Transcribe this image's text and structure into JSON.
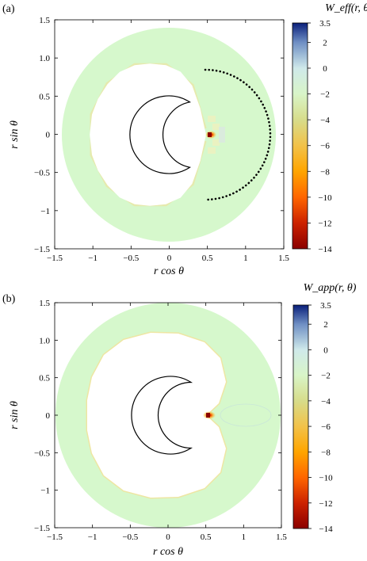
{
  "chart_data": [
    {
      "type": "heatmap",
      "panel_label": "(a)",
      "xlabel": "r cos θ",
      "ylabel": "r sin θ",
      "xlim": [
        -1.5,
        1.5
      ],
      "ylim": [
        -1.5,
        1.5
      ],
      "xticks": [
        -1.5,
        -1,
        -0.5,
        0,
        0.5,
        1,
        1.5
      ],
      "xtick_labels": [
        "−1.5",
        "−1",
        "−0.5",
        "0",
        "0.5",
        "1",
        "1.5"
      ],
      "yticks": [
        -1.5,
        -1,
        -0.5,
        0,
        0.5,
        1,
        1.5
      ],
      "ytick_labels": [
        "−1.5",
        "−1",
        "−0.5",
        "0",
        "0.5",
        "1.0",
        "1.5"
      ],
      "colorbar": {
        "title": "W_eff(r, θ)",
        "range": [
          -14,
          3.5
        ],
        "ticks": [
          3.5,
          2,
          0,
          -2,
          -4,
          -6,
          -8,
          -10,
          -12,
          -14
        ],
        "tick_labels": [
          "3.5",
          "2",
          "0",
          "−2",
          "−4",
          "−6",
          "−8",
          "−10",
          "−12",
          "−14"
        ]
      },
      "outer_radius": 1.4,
      "background_value": 0.3,
      "dotted_arc": {
        "center": [
          0.21,
          0
        ],
        "radius": 0.34,
        "theta_deg": [
          -72,
          72
        ]
      },
      "hotspot": {
        "r": 0.52,
        "value": -14
      }
    },
    {
      "type": "heatmap",
      "panel_label": "(b)",
      "xlabel": "r cos θ",
      "ylabel": "r sin θ",
      "xlim": [
        -1.5,
        1.5
      ],
      "ylim": [
        -1.5,
        1.5
      ],
      "xticks": [
        -1.5,
        -1,
        -0.5,
        0,
        0.5,
        1,
        1.5
      ],
      "xtick_labels": [
        "−1.5",
        "−1",
        "−0.5",
        "0",
        "0.5",
        "1",
        "1.5"
      ],
      "yticks": [
        -1.5,
        -1,
        -0.5,
        0,
        0.5,
        1,
        1.5
      ],
      "ytick_labels": [
        "−1.5",
        "−1",
        "−0.5",
        "0",
        "0.5",
        "1.0",
        "1.5"
      ],
      "colorbar": {
        "title": "W_app(r, θ)",
        "range": [
          -14,
          3.5
        ],
        "ticks": [
          3.5,
          2,
          0,
          -2,
          -4,
          -6,
          -8,
          -10,
          -12,
          -14
        ],
        "tick_labels": [
          "3.5",
          "2",
          "0",
          "−2",
          "−4",
          "−6",
          "−8",
          "−10",
          "−12",
          "−14"
        ]
      },
      "outer_radius": 1.4,
      "background_value": 0.3,
      "hotspot": {
        "r": 0.52,
        "value": -14
      }
    }
  ],
  "colors": {
    "colormap": [
      "#8b0000",
      "#cc2200",
      "#ff6600",
      "#ffa500",
      "#f2c24a",
      "#d7dc8a",
      "#d8f5c8",
      "#cfe9ea",
      "#6f8fc4",
      "#0a1f7a"
    ],
    "field": "#d6f8cc",
    "field_edge": "#e9e7a8"
  }
}
